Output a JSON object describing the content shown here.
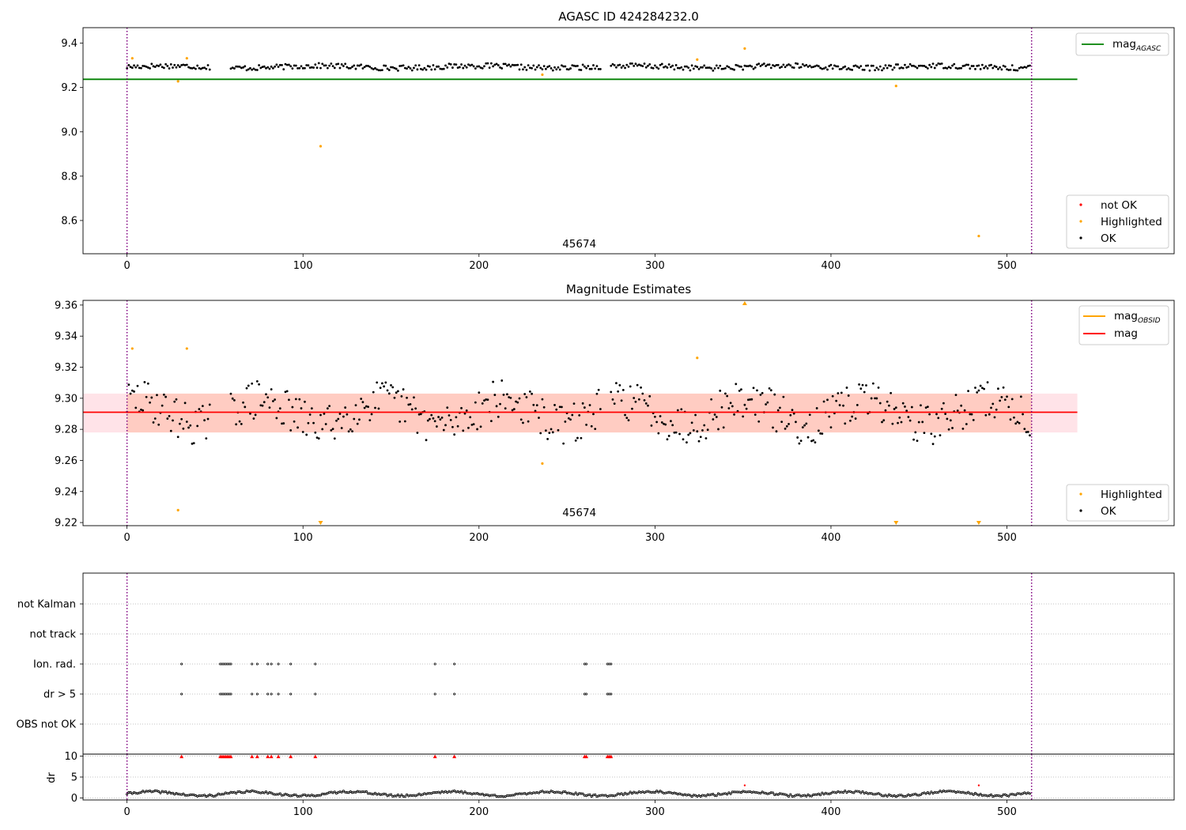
{
  "figure": {
    "background": "#ffffff"
  },
  "chart_data": [
    {
      "type": "scatter",
      "title": "AGASC ID 424284232.0",
      "xlim": [
        -25,
        595
      ],
      "ylim": [
        8.45,
        9.47
      ],
      "xticks": [
        0,
        100,
        200,
        300,
        400,
        500
      ],
      "yticks": [
        8.6,
        8.8,
        9.0,
        9.2,
        9.4
      ],
      "ytick_labels": [
        "8.6",
        "8.8",
        "9.0",
        "9.2",
        "9.4"
      ],
      "vlines": [
        0,
        514
      ],
      "hline": {
        "name": "mag",
        "subscript": "AGASC",
        "value": 9.237,
        "xrange": [
          -25,
          540
        ],
        "color": "#008000"
      },
      "obsid_label": {
        "text": "45674",
        "x": 257,
        "y": 8.465
      },
      "ok_series": {
        "name": "OK",
        "color": "#000000",
        "n": 514,
        "base": 9.293,
        "amp": 0.012,
        "gaps": [
          [
            48,
            58
          ],
          [
            270,
            274
          ]
        ]
      },
      "highlighted": {
        "name": "Highlighted",
        "color": "#FFA500",
        "points": [
          [
            3,
            9.332
          ],
          [
            29,
            9.228
          ],
          [
            34,
            9.332
          ],
          [
            110,
            8.935
          ],
          [
            236,
            9.258
          ],
          [
            324,
            9.326
          ],
          [
            351,
            9.376
          ],
          [
            437,
            9.207
          ],
          [
            484,
            8.53
          ]
        ]
      },
      "legend_upper": [
        {
          "label": "mag",
          "sub": "AGASC",
          "color": "#008000",
          "kind": "line"
        }
      ],
      "legend_lower": [
        {
          "label": "not OK",
          "color": "#FF0000",
          "kind": "dot"
        },
        {
          "label": "Highlighted",
          "color": "#FFA500",
          "kind": "dot"
        },
        {
          "label": "OK",
          "color": "#000000",
          "kind": "dot"
        }
      ]
    },
    {
      "type": "scatter",
      "title": "Magnitude Estimates",
      "xlim": [
        -25,
        595
      ],
      "ylim": [
        9.218,
        9.363
      ],
      "xticks": [
        0,
        100,
        200,
        300,
        400,
        500
      ],
      "yticks": [
        9.22,
        9.24,
        9.26,
        9.28,
        9.3,
        9.32,
        9.34,
        9.36
      ],
      "ytick_labels": [
        "9.22",
        "9.24",
        "9.26",
        "9.28",
        "9.30",
        "9.32",
        "9.34",
        "9.36"
      ],
      "vlines": [
        0,
        514
      ],
      "mag_line": {
        "name": "mag",
        "value": 9.291,
        "xrange": [
          -25,
          540
        ],
        "color": "#FF0000"
      },
      "mag_band": {
        "low": 9.278,
        "high": 9.303,
        "xrange": [
          -25,
          540
        ],
        "color": "#FFC0CB"
      },
      "mag_obsid_band": {
        "low": 9.278,
        "high": 9.303,
        "xrange": [
          0,
          514
        ],
        "color": "#FFA07A"
      },
      "mag_obsid_line": {
        "name": "mag",
        "subscript": "OBSID",
        "value": 9.291,
        "xrange": [
          0,
          514
        ],
        "color": "#FFA500"
      },
      "obsid_label": {
        "text": "45674",
        "x": 257,
        "y": 9.222
      },
      "ok_series": {
        "name": "OK",
        "color": "#000000",
        "n": 514,
        "base": 9.291,
        "amp": 0.013,
        "gaps": [
          [
            48,
            58
          ],
          [
            270,
            274
          ]
        ]
      },
      "highlighted": {
        "name": "Highlighted",
        "color": "#FFA500",
        "points": [
          [
            3,
            9.332
          ],
          [
            29,
            9.228
          ],
          [
            34,
            9.332
          ],
          [
            236,
            9.258
          ],
          [
            324,
            9.326
          ]
        ],
        "clipped_high": [
          351
        ],
        "clipped_low": [
          110,
          437,
          484
        ]
      },
      "legend_upper": [
        {
          "label": "mag",
          "sub": "OBSID",
          "color": "#FFA500",
          "kind": "line"
        },
        {
          "label": "mag",
          "sub": "",
          "color": "#FF0000",
          "kind": "line"
        }
      ],
      "legend_lower": [
        {
          "label": "Highlighted",
          "color": "#FFA500",
          "kind": "dot"
        },
        {
          "label": "OK",
          "color": "#000000",
          "kind": "dot"
        }
      ]
    },
    {
      "type": "scatter",
      "xlim": [
        -25,
        595
      ],
      "categories": [
        "not Kalman",
        "not track",
        "Ion. rad.",
        "dr > 5",
        "OBS not OK"
      ],
      "vlines": [
        0,
        514
      ],
      "flag_positions": [
        31,
        53,
        54,
        55,
        56,
        57,
        58,
        59,
        71,
        74,
        80,
        82,
        86,
        93,
        107,
        175,
        186,
        260,
        261,
        273,
        274,
        275
      ],
      "flagged_rows": [
        "Ion. rad.",
        "dr > 5"
      ]
    },
    {
      "type": "scatter",
      "ylabel": "dr",
      "xlim": [
        -25,
        595
      ],
      "ylim": [
        -0.5,
        10.5
      ],
      "xticks": [
        0,
        100,
        200,
        300,
        400,
        500
      ],
      "yticks": [
        0,
        5,
        10
      ],
      "ytick_labels": [
        "0",
        "5",
        "10"
      ],
      "vlines": [
        0,
        514
      ],
      "dr_series": {
        "n": 514,
        "color": "#000000",
        "base": 1.0,
        "amp": 0.5
      },
      "clipped_marks": {
        "value": 10,
        "color": "#FF0000",
        "positions": [
          31,
          53,
          54,
          55,
          56,
          57,
          58,
          59,
          71,
          74,
          80,
          82,
          86,
          93,
          107,
          175,
          186,
          260,
          261,
          273,
          274,
          275
        ]
      },
      "red_points": [
        [
          351,
          3.0
        ],
        [
          484,
          3.0
        ]
      ]
    }
  ]
}
